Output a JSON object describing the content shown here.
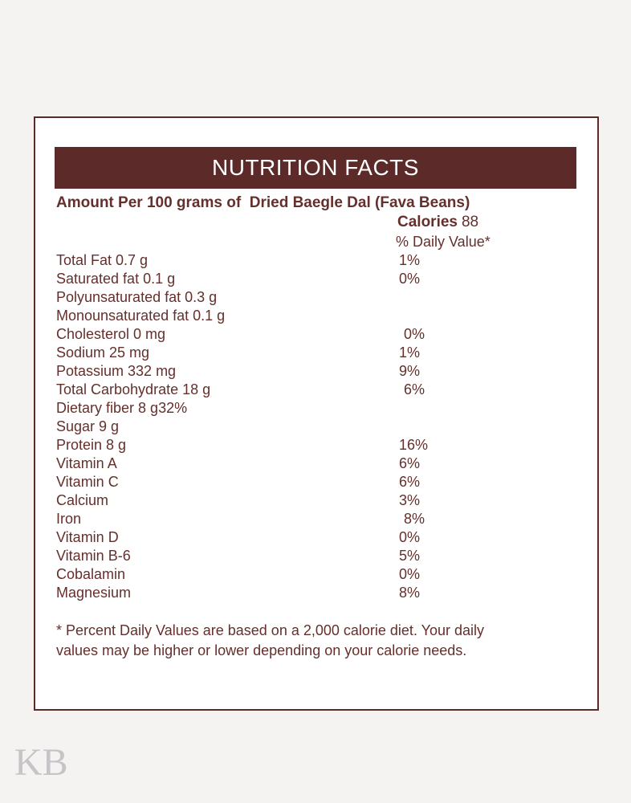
{
  "page": {
    "watermark": "KB",
    "colors": {
      "background": "#f4f3f2",
      "maroon": "#5c2b29",
      "text": "#652f2c",
      "watermark_gray": "#c5c5c7",
      "card_background": "#ffffff",
      "title_text": "#ffffff"
    }
  },
  "label": {
    "title": "NUTRITION FACTS",
    "serving_line": "Amount Per 100 grams of  Dried Baegle Dal (Fava Beans)",
    "calories_label": "Calories",
    "calories_value": "88",
    "daily_value_header": "% Daily Value*",
    "rows": [
      {
        "label": "Total Fat 0.7 g",
        "value": "1%"
      },
      {
        "label": "Saturated fat 0.1 g",
        "value": "0%"
      },
      {
        "label": "Polyunsaturated fat 0.3 g",
        "value": ""
      },
      {
        "label": "Monounsaturated fat 0.1 g",
        "value": ""
      },
      {
        "label": "Cholesterol 0 mg",
        "value": "0%",
        "indent": true
      },
      {
        "label": "Sodium 25 mg",
        "value": "1%"
      },
      {
        "label": "Potassium 332 mg",
        "value": "9%"
      },
      {
        "label": "Total Carbohydrate 18 g",
        "value": "6%",
        "indent": true
      },
      {
        "label": "Dietary fiber 8 g",
        "inline_value": "32%",
        "value": ""
      },
      {
        "label": "Sugar 9 g",
        "value": ""
      },
      {
        "label": "Protein 8 g",
        "value": "16%"
      },
      {
        "label": "Vitamin A",
        "value": "6%"
      },
      {
        "label": "Vitamin C",
        "value": "6%"
      },
      {
        "label": "Calcium",
        "value": "3%"
      },
      {
        "label": "Iron",
        "value": "8%",
        "indent": true
      },
      {
        "label": "Vitamin D",
        "value": "0%"
      },
      {
        "label": "Vitamin B-6",
        "value": "5%"
      },
      {
        "label": "Cobalamin",
        "value": "0%"
      },
      {
        "label": "Magnesium",
        "value": "8%"
      }
    ],
    "footnote_line1": "* Percent Daily Values are based on a 2,000 calorie diet. Your daily",
    "footnote_line2": "values may be higher or lower depending on your calorie needs."
  }
}
